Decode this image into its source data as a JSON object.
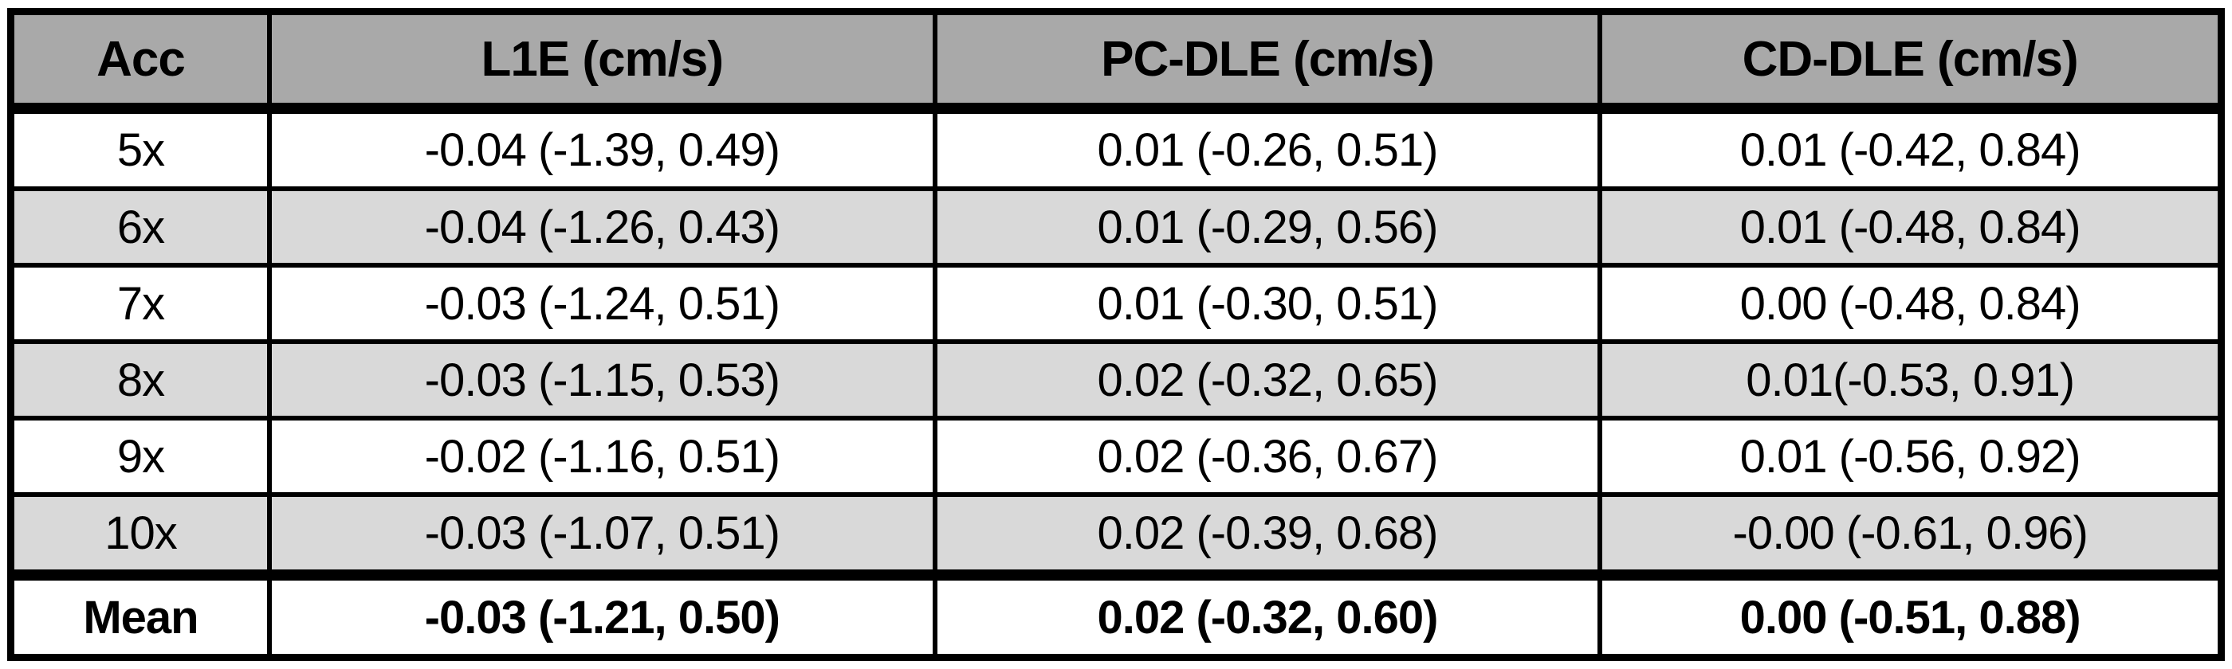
{
  "colors": {
    "header_bg": "#a9a9a9",
    "alt_row_bg": "#d9d9d9",
    "plain_row_bg": "#ffffff",
    "border": "#000000",
    "text": "#000000"
  },
  "chart_data": {
    "type": "table",
    "columns": [
      "Acc",
      "L1E (cm/s)",
      "PC-DLE (cm/s)",
      "CD-DLE (cm/s)"
    ],
    "rows": [
      [
        "5x",
        "-0.04 (-1.39, 0.49)",
        "0.01 (-0.26, 0.51)",
        "0.01 (-0.42, 0.84)"
      ],
      [
        "6x",
        "-0.04 (-1.26, 0.43)",
        "0.01 (-0.29, 0.56)",
        "0.01 (-0.48, 0.84)"
      ],
      [
        "7x",
        "-0.03 (-1.24, 0.51)",
        "0.01 (-0.30, 0.51)",
        "0.00 (-0.48, 0.84)"
      ],
      [
        "8x",
        "-0.03 (-1.15, 0.53)",
        "0.02 (-0.32, 0.65)",
        "0.01(-0.53, 0.91)"
      ],
      [
        "9x",
        "-0.02 (-1.16, 0.51)",
        "0.02 (-0.36, 0.67)",
        "0.01 (-0.56, 0.92)"
      ],
      [
        "10x",
        "-0.03 (-1.07, 0.51)",
        "0.02 (-0.39, 0.68)",
        "-0.00 (-0.61, 0.96)"
      ],
      [
        "Mean",
        "-0.03 (-1.21, 0.50)",
        "0.02 (-0.32, 0.60)",
        "0.00 (-0.51, 0.88)"
      ]
    ],
    "layout_hints": {
      "header_style": "bold on gray",
      "row_striping": "white / light gray alternating, starting white at 5x",
      "mean_row_style": "bold with thick top rule",
      "cell_alignment": "center"
    }
  }
}
